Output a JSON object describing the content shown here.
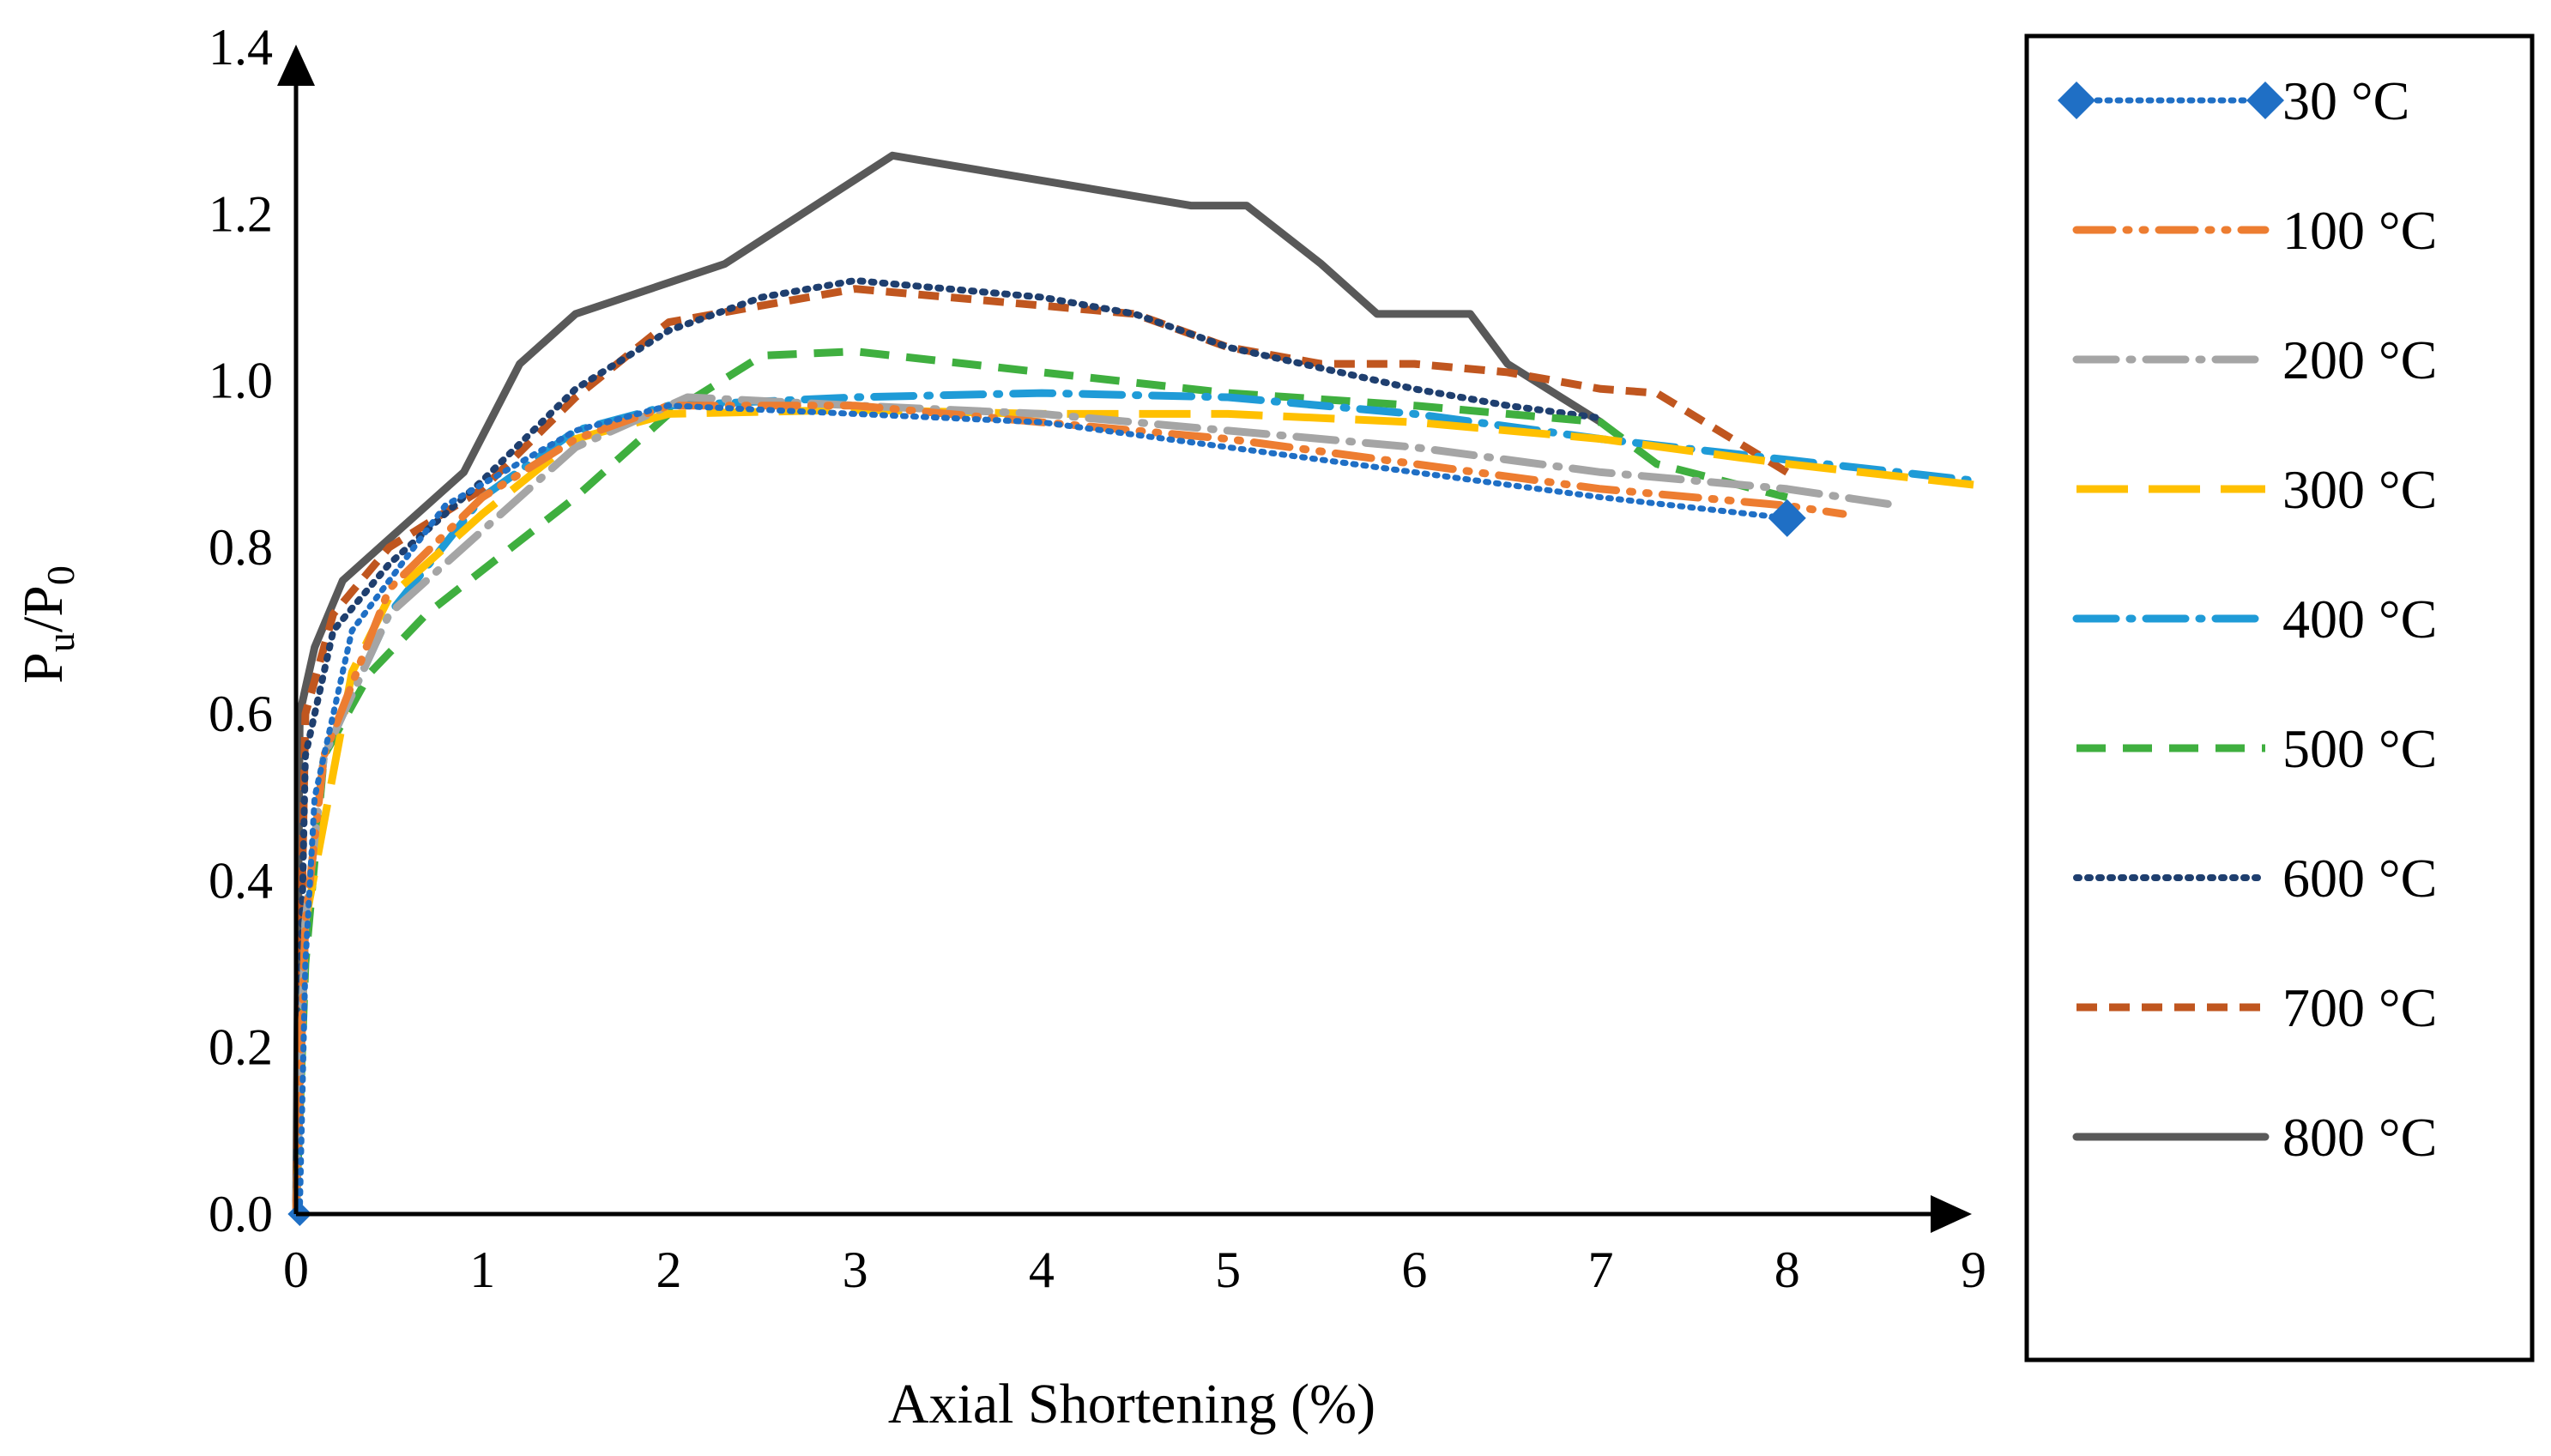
{
  "chart_data": {
    "type": "line",
    "title": "",
    "xlabel": "Axial Shortening (%)",
    "ylabel": {
      "main": "P",
      "sub": "u",
      "sep": "/",
      "main2": "P",
      "sub2": "0"
    },
    "xlim": [
      0,
      9
    ],
    "ylim": [
      0,
      1.4
    ],
    "x_ticks": [
      "0",
      "1",
      "2",
      "3",
      "4",
      "5",
      "6",
      "7",
      "8",
      "9"
    ],
    "y_ticks": [
      "0.0",
      "0.2",
      "0.4",
      "0.6",
      "0.8",
      "1.0",
      "1.2",
      "1.4"
    ],
    "legend_position": "right",
    "series": [
      {
        "name": "30 °C",
        "color": "#1F6FC5",
        "style": "dotted-marker",
        "points": [
          [
            0.02,
            0
          ],
          [
            0.05,
            0.3
          ],
          [
            0.1,
            0.5
          ],
          [
            0.3,
            0.7
          ],
          [
            0.8,
            0.85
          ],
          [
            1.5,
            0.94
          ],
          [
            2,
            0.97
          ],
          [
            3,
            0.96
          ],
          [
            4,
            0.95
          ],
          [
            5,
            0.92
          ],
          [
            6,
            0.89
          ],
          [
            7,
            0.86
          ],
          [
            8,
            0.835
          ]
        ]
      },
      {
        "name": "100 °C",
        "color": "#ED7D31",
        "style": "dash-dot-dot",
        "points": [
          [
            0,
            0
          ],
          [
            0.05,
            0.35
          ],
          [
            0.15,
            0.55
          ],
          [
            0.5,
            0.75
          ],
          [
            1,
            0.86
          ],
          [
            1.5,
            0.93
          ],
          [
            2,
            0.97
          ],
          [
            3,
            0.97
          ],
          [
            4,
            0.95
          ],
          [
            5,
            0.93
          ],
          [
            6,
            0.9
          ],
          [
            7,
            0.87
          ],
          [
            8,
            0.85
          ],
          [
            8.3,
            0.84
          ]
        ]
      },
      {
        "name": "200 °C",
        "color": "#A5A5A5",
        "style": "dash-dot",
        "points": [
          [
            0,
            0
          ],
          [
            0.05,
            0.35
          ],
          [
            0.15,
            0.55
          ],
          [
            0.5,
            0.72
          ],
          [
            1,
            0.82
          ],
          [
            1.5,
            0.92
          ],
          [
            2.1,
            0.98
          ],
          [
            3,
            0.97
          ],
          [
            4,
            0.96
          ],
          [
            5,
            0.94
          ],
          [
            6,
            0.92
          ],
          [
            7,
            0.89
          ],
          [
            8,
            0.87
          ],
          [
            8.6,
            0.85
          ]
        ]
      },
      {
        "name": "300 °C",
        "color": "#FFC000",
        "style": "long-dash",
        "points": [
          [
            0,
            0
          ],
          [
            0.05,
            0.35
          ],
          [
            0.3,
            0.65
          ],
          [
            0.5,
            0.74
          ],
          [
            1,
            0.84
          ],
          [
            1.5,
            0.93
          ],
          [
            2,
            0.96
          ],
          [
            3,
            0.965
          ],
          [
            4,
            0.96
          ],
          [
            5,
            0.96
          ],
          [
            6,
            0.95
          ],
          [
            7,
            0.93
          ],
          [
            8,
            0.9
          ],
          [
            9,
            0.875
          ]
        ]
      },
      {
        "name": "400 °C",
        "color": "#1F9BD7",
        "style": "dash-dot",
        "points": [
          [
            0,
            0
          ],
          [
            0.05,
            0.35
          ],
          [
            0.15,
            0.55
          ],
          [
            0.5,
            0.72
          ],
          [
            1,
            0.86
          ],
          [
            1.5,
            0.94
          ],
          [
            2,
            0.97
          ],
          [
            3,
            0.98
          ],
          [
            4,
            0.985
          ],
          [
            5,
            0.98
          ],
          [
            6,
            0.96
          ],
          [
            7,
            0.93
          ],
          [
            8,
            0.905
          ],
          [
            9,
            0.88
          ]
        ]
      },
      {
        "name": "500 °C",
        "color": "#3FAF3F",
        "style": "dash",
        "points": [
          [
            0,
            0
          ],
          [
            0.05,
            0.3
          ],
          [
            0.15,
            0.55
          ],
          [
            0.4,
            0.65
          ],
          [
            0.7,
            0.72
          ],
          [
            1.5,
            0.86
          ],
          [
            2,
            0.96
          ],
          [
            2.5,
            1.03
          ],
          [
            3,
            1.035
          ],
          [
            4,
            1.01
          ],
          [
            5,
            0.985
          ],
          [
            6,
            0.97
          ],
          [
            7,
            0.95
          ],
          [
            7.3,
            0.9
          ],
          [
            8,
            0.86
          ]
        ]
      },
      {
        "name": "600 °C",
        "color": "#1F3F6F",
        "style": "dotted",
        "points": [
          [
            0,
            0
          ],
          [
            0.05,
            0.55
          ],
          [
            0.2,
            0.7
          ],
          [
            0.5,
            0.78
          ],
          [
            1,
            0.88
          ],
          [
            1.5,
            0.99
          ],
          [
            2,
            1.06
          ],
          [
            2.5,
            1.1
          ],
          [
            3,
            1.12
          ],
          [
            4,
            1.1
          ],
          [
            4.5,
            1.08
          ],
          [
            5,
            1.04
          ],
          [
            6,
            0.99
          ],
          [
            6.5,
            0.97
          ],
          [
            7,
            0.955
          ]
        ]
      },
      {
        "name": "700 °C",
        "color": "#C0561F",
        "style": "short-dash",
        "points": [
          [
            0,
            0
          ],
          [
            0.05,
            0.6
          ],
          [
            0.2,
            0.72
          ],
          [
            0.5,
            0.8
          ],
          [
            1,
            0.87
          ],
          [
            1.5,
            0.98
          ],
          [
            2,
            1.07
          ],
          [
            2.5,
            1.09
          ],
          [
            3,
            1.11
          ],
          [
            4,
            1.09
          ],
          [
            4.5,
            1.08
          ],
          [
            5,
            1.04
          ],
          [
            5.5,
            1.02
          ],
          [
            6,
            1.02
          ],
          [
            6.5,
            1.01
          ],
          [
            7,
            0.99
          ],
          [
            7.3,
            0.985
          ],
          [
            8,
            0.89
          ]
        ]
      },
      {
        "name": "800 °C",
        "color": "#595959",
        "style": "solid",
        "points": [
          [
            0,
            0
          ],
          [
            0.02,
            0.6
          ],
          [
            0.1,
            0.68
          ],
          [
            0.25,
            0.76
          ],
          [
            0.5,
            0.81
          ],
          [
            0.9,
            0.89
          ],
          [
            1.2,
            1.02
          ],
          [
            1.5,
            1.08
          ],
          [
            2.3,
            1.14
          ],
          [
            3.2,
            1.27
          ],
          [
            4,
            1.24
          ],
          [
            4.8,
            1.21
          ],
          [
            5.1,
            1.21
          ],
          [
            5.5,
            1.14
          ],
          [
            5.8,
            1.08
          ],
          [
            6.3,
            1.08
          ],
          [
            6.5,
            1.02
          ],
          [
            7,
            0.95
          ]
        ]
      }
    ]
  }
}
